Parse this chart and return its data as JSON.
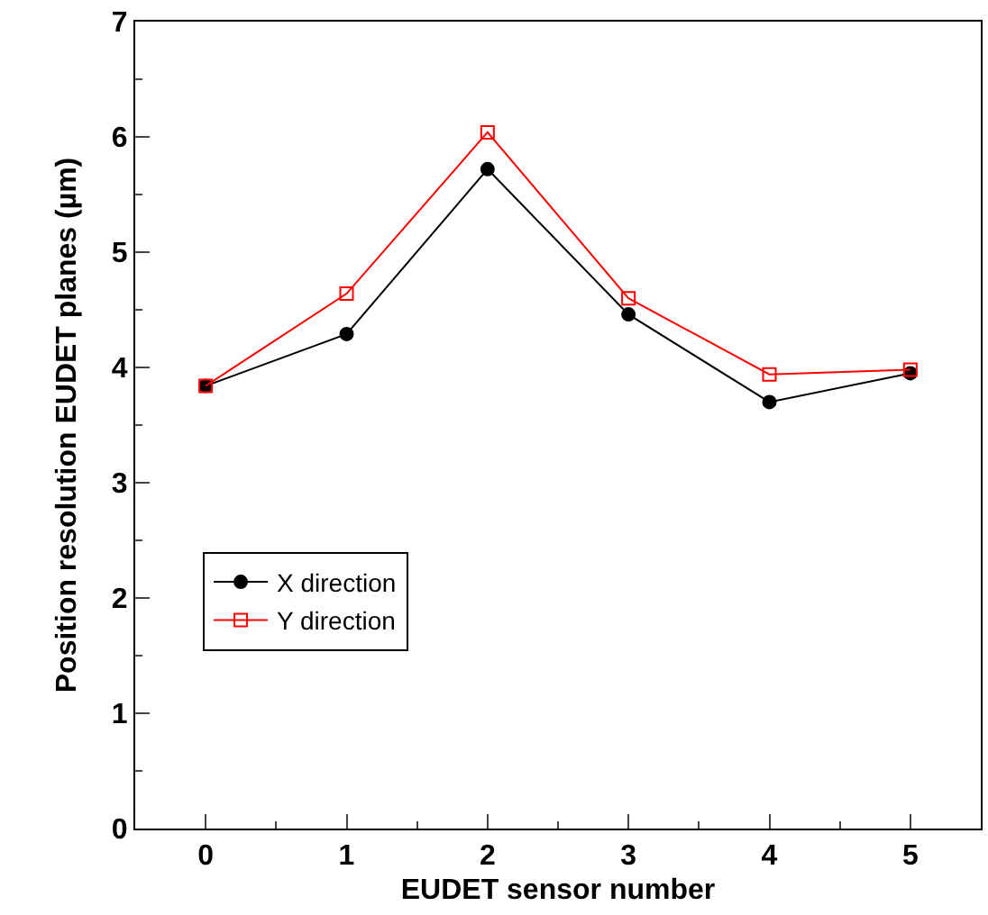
{
  "chart_data": {
    "type": "line",
    "xlabel": "EUDET sensor number",
    "ylabel": "Position resolution EUDET planes (µm)",
    "x": [
      0,
      1,
      2,
      3,
      4,
      5
    ],
    "series": [
      {
        "name": "X direction",
        "color": "#000000",
        "marker": "circle",
        "values": [
          3.84,
          4.29,
          5.72,
          4.46,
          3.7,
          3.95
        ]
      },
      {
        "name": "Y direction",
        "color": "#ff0000",
        "marker": "square",
        "values": [
          3.84,
          4.64,
          6.04,
          4.6,
          3.94,
          3.98
        ]
      }
    ],
    "xlim": [
      -0.5,
      5.5
    ],
    "xticks": [
      0,
      1,
      2,
      3,
      4,
      5
    ],
    "ylim": [
      0,
      7
    ],
    "yticks": [
      0,
      1,
      2,
      3,
      4,
      5,
      6,
      7
    ],
    "legend": "bottom left",
    "line_style": "solid"
  }
}
